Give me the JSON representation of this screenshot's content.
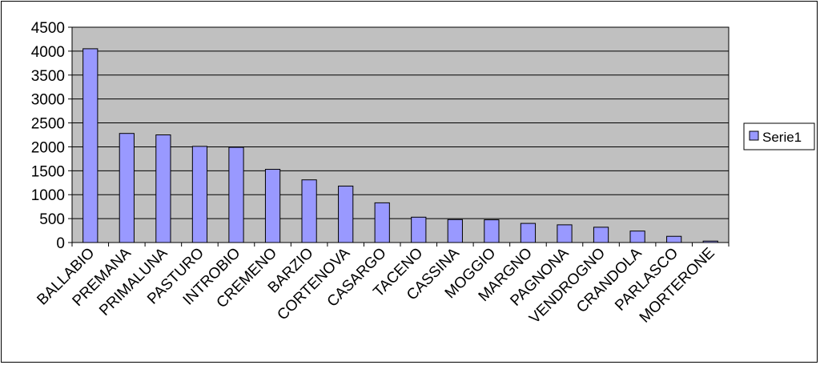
{
  "chart_data": {
    "type": "bar",
    "categories": [
      "BALLABIO",
      "PREMANA",
      "PRIMALUNA",
      "PASTURO",
      "INTROBIO",
      "CREMENO",
      "BARZIO",
      "CORTENOVA",
      "CASARGO",
      "TACENO",
      "CASSINA",
      "MOGGIO",
      "MARGNO",
      "PAGNONA",
      "VENDROGNO",
      "CRANDOLA",
      "PARLASCO",
      "MORTERONE"
    ],
    "series": [
      {
        "name": "Serie1",
        "values": [
          4050,
          2280,
          2250,
          2010,
          1990,
          1530,
          1310,
          1180,
          830,
          530,
          480,
          475,
          400,
          370,
          320,
          240,
          130,
          30
        ]
      }
    ],
    "ylim": [
      0,
      4500
    ],
    "yticks": [
      0,
      500,
      1000,
      1500,
      2000,
      2500,
      3000,
      3500,
      4000,
      4500
    ],
    "grid": true,
    "legend_position": "right",
    "colors": {
      "bar_fill": "#9999ff",
      "bar_stroke": "#000000",
      "plot_bg": "#c0c0c0",
      "gridline": "#000000"
    }
  }
}
